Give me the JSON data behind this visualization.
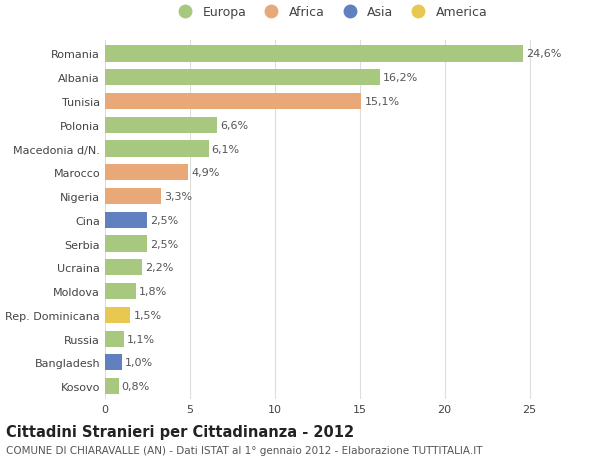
{
  "categories": [
    "Romania",
    "Albania",
    "Tunisia",
    "Polonia",
    "Macedonia d/N.",
    "Marocco",
    "Nigeria",
    "Cina",
    "Serbia",
    "Ucraina",
    "Moldova",
    "Rep. Dominicana",
    "Russia",
    "Bangladesh",
    "Kosovo"
  ],
  "values": [
    24.6,
    16.2,
    15.1,
    6.6,
    6.1,
    4.9,
    3.3,
    2.5,
    2.5,
    2.2,
    1.8,
    1.5,
    1.1,
    1.0,
    0.8
  ],
  "labels": [
    "24,6%",
    "16,2%",
    "15,1%",
    "6,6%",
    "6,1%",
    "4,9%",
    "3,3%",
    "2,5%",
    "2,5%",
    "2,2%",
    "1,8%",
    "1,5%",
    "1,1%",
    "1,0%",
    "0,8%"
  ],
  "colors": [
    "#a8c880",
    "#a8c880",
    "#e8a878",
    "#a8c880",
    "#a8c880",
    "#e8a878",
    "#e8a878",
    "#6080c0",
    "#a8c880",
    "#a8c880",
    "#a8c880",
    "#e8c850",
    "#a8c880",
    "#6080c0",
    "#a8c880"
  ],
  "legend_labels": [
    "Europa",
    "Africa",
    "Asia",
    "America"
  ],
  "legend_colors": [
    "#a8c880",
    "#e8a878",
    "#6080c0",
    "#e8c850"
  ],
  "title": "Cittadini Stranieri per Cittadinanza - 2012",
  "subtitle": "COMUNE DI CHIARAVALLE (AN) - Dati ISTAT al 1° gennaio 2012 - Elaborazione TUTTITALIA.IT",
  "xlim": [
    0,
    26.5
  ],
  "xticks": [
    0,
    5,
    10,
    15,
    20,
    25
  ],
  "bg_color": "#ffffff",
  "grid_color": "#dddddd",
  "bar_height": 0.68,
  "label_fontsize": 8.0,
  "title_fontsize": 10.5,
  "subtitle_fontsize": 7.5,
  "tick_fontsize": 8.0,
  "legend_fontsize": 9.0
}
